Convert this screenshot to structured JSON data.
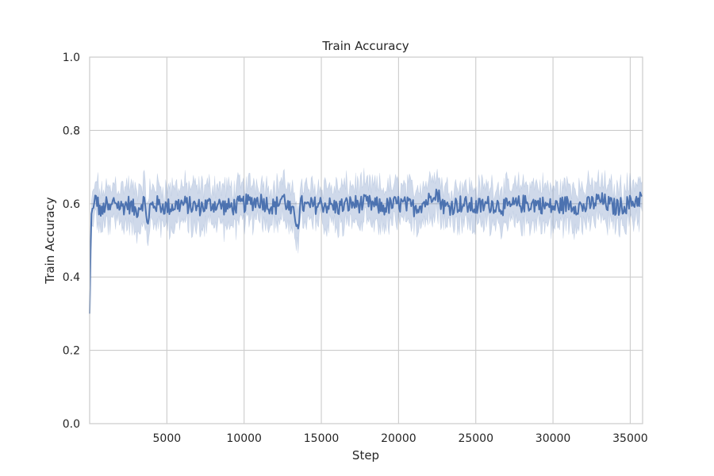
{
  "chart_data": {
    "type": "line",
    "title": "Train Accuracy",
    "xlabel": "Step",
    "ylabel": "Train Accuracy",
    "xlim": [
      0,
      35800
    ],
    "ylim": [
      0.0,
      1.0
    ],
    "xticks": [
      5000,
      10000,
      15000,
      20000,
      25000,
      30000,
      35000
    ],
    "xtick_labels": [
      "5000",
      "10000",
      "15000",
      "20000",
      "25000",
      "30000",
      "35000"
    ],
    "yticks": [
      0.0,
      0.2,
      0.4,
      0.6,
      0.8,
      1.0
    ],
    "ytick_labels": [
      "0.0",
      "0.2",
      "0.4",
      "0.6",
      "0.8",
      "1.0"
    ],
    "grid": true,
    "colors": {
      "line": "#4c72b0",
      "band": "#4c72b0",
      "grid": "#cccccc",
      "spine": "#cccccc"
    },
    "series": [
      {
        "name": "Train Accuracy",
        "x": [
          0,
          50,
          100,
          150,
          250,
          400,
          600,
          800,
          1000,
          1300,
          1600,
          2000,
          2500,
          3000,
          3500,
          3700,
          3800,
          3900,
          4200,
          5000,
          6000,
          7000,
          8000,
          9000,
          10000,
          11000,
          12000,
          12500,
          13000,
          13500,
          13700,
          14000,
          15000,
          16000,
          17000,
          18000,
          19000,
          20000,
          21000,
          22000,
          22300,
          23000,
          24000,
          25000,
          26000,
          27000,
          28000,
          29000,
          30000,
          31000,
          32000,
          33000,
          34000,
          35000,
          35800
        ],
        "y": [
          0.3,
          0.45,
          0.55,
          0.6,
          0.58,
          0.62,
          0.59,
          0.57,
          0.6,
          0.58,
          0.61,
          0.59,
          0.6,
          0.58,
          0.61,
          0.57,
          0.53,
          0.59,
          0.6,
          0.59,
          0.6,
          0.59,
          0.6,
          0.59,
          0.6,
          0.61,
          0.59,
          0.62,
          0.58,
          0.55,
          0.6,
          0.59,
          0.6,
          0.59,
          0.6,
          0.6,
          0.59,
          0.6,
          0.59,
          0.61,
          0.64,
          0.59,
          0.6,
          0.59,
          0.6,
          0.59,
          0.6,
          0.6,
          0.59,
          0.6,
          0.59,
          0.61,
          0.59,
          0.6,
          0.62
        ],
        "ci_halfwidth": 0.05,
        "noise_amplitude": 0.025
      }
    ]
  }
}
